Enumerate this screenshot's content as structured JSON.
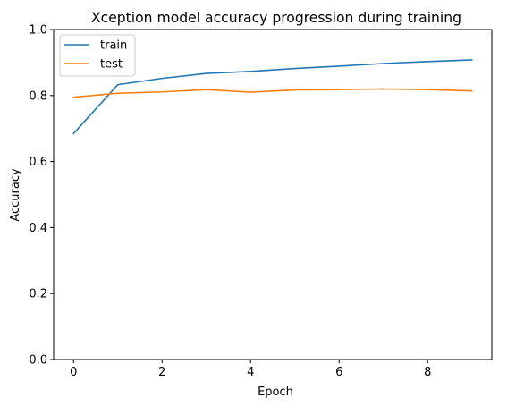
{
  "chart_data": {
    "type": "line",
    "title": "Xception model accuracy progression during training",
    "xlabel": "Epoch",
    "ylabel": "Accuracy",
    "xlim": [
      -0.45,
      9.45
    ],
    "ylim": [
      0.0,
      1.0
    ],
    "x_ticks": [
      0,
      2,
      4,
      6,
      8
    ],
    "x_tick_labels": [
      "0",
      "2",
      "4",
      "6",
      "8"
    ],
    "y_ticks": [
      0.0,
      0.2,
      0.4,
      0.6,
      0.8,
      1.0
    ],
    "y_tick_labels": [
      "0.0",
      "0.2",
      "0.4",
      "0.6",
      "0.8",
      "1.0"
    ],
    "grid": false,
    "legend_position": "top-left",
    "x": [
      0,
      1,
      2,
      3,
      4,
      5,
      6,
      7,
      8,
      9
    ],
    "series": [
      {
        "name": "train",
        "color": "#1f77b4",
        "values": [
          0.685,
          0.833,
          0.852,
          0.867,
          0.873,
          0.882,
          0.889,
          0.897,
          0.903,
          0.908
        ]
      },
      {
        "name": "test",
        "color": "#ff7f0e",
        "values": [
          0.795,
          0.807,
          0.811,
          0.818,
          0.81,
          0.817,
          0.818,
          0.82,
          0.818,
          0.814
        ]
      }
    ]
  }
}
